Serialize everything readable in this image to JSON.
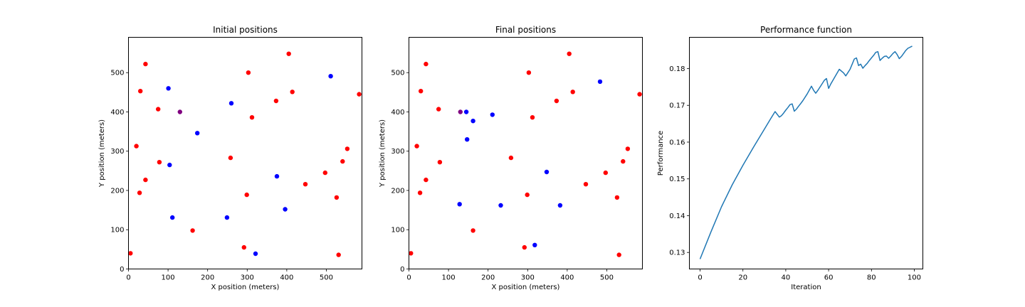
{
  "chart_data": [
    {
      "type": "scatter",
      "title": "Initial positions",
      "xlabel": "X position (meters)",
      "ylabel": "Y position (meters)",
      "xlim": [
        0,
        590
      ],
      "ylim": [
        0,
        590
      ],
      "xticks": [
        0,
        100,
        200,
        300,
        400,
        500
      ],
      "yticks": [
        0,
        100,
        200,
        300,
        400,
        500
      ],
      "colors": {
        "red": "#ff0000",
        "blue": "#0000ff",
        "purple": "#800080"
      },
      "series": [
        {
          "color": "red",
          "points": [
            [
              5,
              40
            ],
            [
              20,
              313
            ],
            [
              28,
              194
            ],
            [
              30,
              453
            ],
            [
              43,
              522
            ],
            [
              43,
              227
            ],
            [
              75,
              407
            ],
            [
              78,
              272
            ],
            [
              162,
              98
            ],
            [
              258,
              283
            ],
            [
              292,
              55
            ],
            [
              299,
              189
            ],
            [
              303,
              500
            ],
            [
              312,
              386
            ],
            [
              373,
              428
            ],
            [
              405,
              548
            ],
            [
              414,
              451
            ],
            [
              447,
              216
            ],
            [
              497,
              245
            ],
            [
              526,
              182
            ],
            [
              531,
              36
            ],
            [
              541,
              274
            ],
            [
              553,
              306
            ],
            [
              583,
              445
            ]
          ]
        },
        {
          "color": "blue",
          "points": [
            [
              101,
              460
            ],
            [
              104,
              265
            ],
            [
              111,
              131
            ],
            [
              174,
              346
            ],
            [
              249,
              131
            ],
            [
              260,
              422
            ],
            [
              321,
              39
            ],
            [
              375,
              236
            ],
            [
              396,
              152
            ],
            [
              511,
              491
            ]
          ]
        },
        {
          "color": "purple",
          "points": [
            [
              130,
              400
            ]
          ]
        }
      ]
    },
    {
      "type": "scatter",
      "title": "Final positions",
      "xlabel": "X position (meters)",
      "ylabel": "Y position (meters)",
      "xlim": [
        0,
        590
      ],
      "ylim": [
        0,
        590
      ],
      "xticks": [
        0,
        100,
        200,
        300,
        400,
        500
      ],
      "yticks": [
        0,
        100,
        200,
        300,
        400,
        500
      ],
      "colors": {
        "red": "#ff0000",
        "blue": "#0000ff",
        "purple": "#800080"
      },
      "series": [
        {
          "color": "red",
          "points": [
            [
              5,
              40
            ],
            [
              20,
              313
            ],
            [
              28,
              194
            ],
            [
              30,
              453
            ],
            [
              43,
              522
            ],
            [
              43,
              227
            ],
            [
              75,
              407
            ],
            [
              78,
              272
            ],
            [
              162,
              98
            ],
            [
              258,
              283
            ],
            [
              292,
              55
            ],
            [
              299,
              189
            ],
            [
              303,
              500
            ],
            [
              312,
              386
            ],
            [
              373,
              428
            ],
            [
              405,
              548
            ],
            [
              414,
              451
            ],
            [
              447,
              216
            ],
            [
              497,
              245
            ],
            [
              526,
              182
            ],
            [
              531,
              36
            ],
            [
              541,
              274
            ],
            [
              553,
              306
            ],
            [
              583,
              445
            ]
          ]
        },
        {
          "color": "blue",
          "points": [
            [
              128,
              165
            ],
            [
              145,
              400
            ],
            [
              147,
              330
            ],
            [
              162,
              377
            ],
            [
              211,
              393
            ],
            [
              232,
              162
            ],
            [
              318,
              61
            ],
            [
              348,
              247
            ],
            [
              382,
              162
            ],
            [
              483,
              477
            ]
          ]
        },
        {
          "color": "purple",
          "points": [
            [
              130,
              400
            ]
          ]
        }
      ]
    },
    {
      "type": "line",
      "title": "Performance function",
      "xlabel": "Iteration",
      "ylabel": "Performance",
      "xlim": [
        -5,
        104
      ],
      "ylim": [
        0.1255,
        0.1885
      ],
      "xticks": [
        0,
        20,
        40,
        60,
        80,
        100
      ],
      "yticks": [
        0.13,
        0.14,
        0.15,
        0.16,
        0.17,
        0.18
      ],
      "ytick_labels": [
        "0.13",
        "0.14",
        "0.15",
        "0.16",
        "0.17",
        "0.18"
      ],
      "colors": {
        "line": "#1f77b4"
      },
      "x": [
        0,
        5,
        10,
        15,
        20,
        25,
        30,
        33,
        35,
        37,
        38,
        39,
        40,
        41,
        42,
        43,
        44,
        45,
        46,
        47,
        48,
        50,
        52,
        53,
        54,
        55,
        56,
        58,
        59,
        60,
        61,
        63,
        65,
        67,
        68,
        69,
        70,
        71,
        72,
        73,
        74,
        75,
        76,
        77,
        78,
        79,
        80,
        81,
        82,
        83,
        84,
        85,
        86,
        87,
        88,
        89,
        90,
        91,
        92,
        93,
        94,
        95,
        96,
        97,
        98,
        99
      ],
      "y": [
        0.1282,
        0.1355,
        0.1424,
        0.1484,
        0.1537,
        0.1587,
        0.1635,
        0.1664,
        0.1683,
        0.1668,
        0.1672,
        0.1679,
        0.1687,
        0.1694,
        0.1702,
        0.1704,
        0.1684,
        0.169,
        0.1698,
        0.1705,
        0.1713,
        0.1731,
        0.1752,
        0.1741,
        0.1733,
        0.1741,
        0.175,
        0.1768,
        0.1773,
        0.1746,
        0.1758,
        0.1778,
        0.1798,
        0.1788,
        0.178,
        0.1789,
        0.1798,
        0.1812,
        0.1826,
        0.1829,
        0.1808,
        0.1812,
        0.1801,
        0.1808,
        0.1814,
        0.1822,
        0.1829,
        0.1836,
        0.1844,
        0.1846,
        0.1822,
        0.1828,
        0.1833,
        0.1834,
        0.1828,
        0.1834,
        0.1841,
        0.1846,
        0.1838,
        0.1827,
        0.1833,
        0.1841,
        0.1849,
        0.1855,
        0.1858,
        0.1861
      ]
    }
  ]
}
